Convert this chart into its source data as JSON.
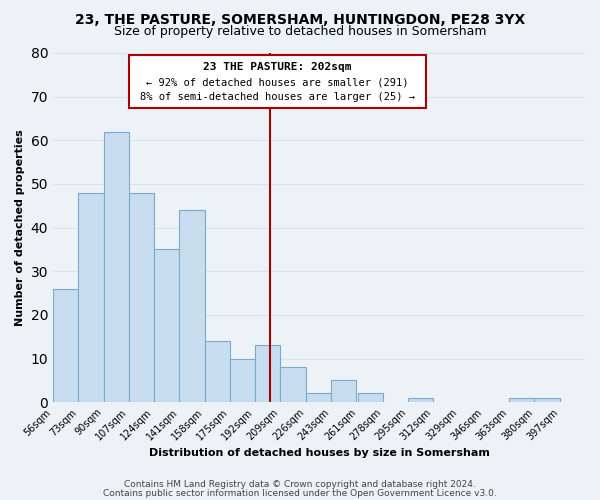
{
  "title1": "23, THE PASTURE, SOMERSHAM, HUNTINGDON, PE28 3YX",
  "title2": "Size of property relative to detached houses in Somersham",
  "xlabel": "Distribution of detached houses by size in Somersham",
  "ylabel": "Number of detached properties",
  "footer1": "Contains HM Land Registry data © Crown copyright and database right 2024.",
  "footer2": "Contains public sector information licensed under the Open Government Licence v3.0.",
  "bar_edges": [
    56,
    73,
    90,
    107,
    124,
    141,
    158,
    175,
    192,
    209,
    226,
    243,
    261,
    278,
    295,
    312,
    329,
    346,
    363,
    380,
    397
  ],
  "bar_heights": [
    26,
    48,
    62,
    48,
    35,
    44,
    14,
    10,
    13,
    8,
    2,
    5,
    2,
    0,
    1,
    0,
    0,
    0,
    1,
    1
  ],
  "bar_color": "#c8ddf0",
  "bar_edge_color": "#7aabcc",
  "property_line_x": 202,
  "property_line_color": "#aa0000",
  "annotation_title": "23 THE PASTURE: 202sqm",
  "annotation_line1": "← 92% of detached houses are smaller (291)",
  "annotation_line2": "8% of semi-detached houses are larger (25) →",
  "annotation_box_facecolor": "#ffffff",
  "annotation_box_edgecolor": "#aa0000",
  "ylim": [
    0,
    80
  ],
  "yticks": [
    0,
    10,
    20,
    30,
    40,
    50,
    60,
    70,
    80
  ],
  "tick_labels": [
    "56sqm",
    "73sqm",
    "90sqm",
    "107sqm",
    "124sqm",
    "141sqm",
    "158sqm",
    "175sqm",
    "192sqm",
    "209sqm",
    "226sqm",
    "243sqm",
    "261sqm",
    "278sqm",
    "295sqm",
    "312sqm",
    "329sqm",
    "346sqm",
    "363sqm",
    "380sqm",
    "397sqm"
  ],
  "grid_color": "#d8e4ec",
  "background_color": "#edf2f7",
  "title_fontsize": 10,
  "subtitle_fontsize": 9,
  "axis_label_fontsize": 8,
  "tick_fontsize": 7,
  "footer_fontsize": 6.5
}
